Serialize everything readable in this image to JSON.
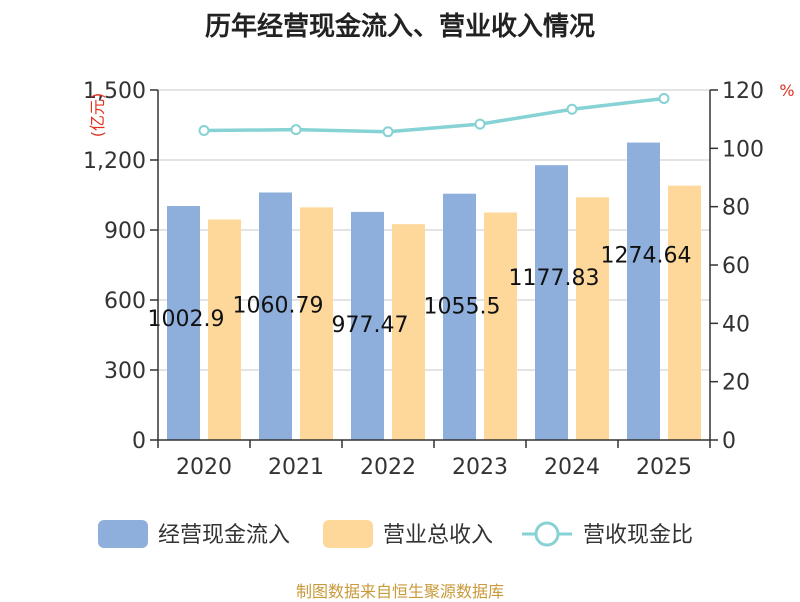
{
  "chart_data": {
    "type": "bar",
    "title": "历年经营现金流入、营业收入情况",
    "categories": [
      "2020",
      "2021",
      "2022",
      "2023",
      "2024",
      "2025"
    ],
    "series": [
      {
        "name": "经营现金流入",
        "type": "bar",
        "axis": "left",
        "color": "#8eaedb",
        "values": [
          1002.9,
          1060.79,
          977.47,
          1055.5,
          1177.83,
          1274.64
        ]
      },
      {
        "name": "营业总收入",
        "type": "bar",
        "axis": "left",
        "color": "#fdd89a",
        "values": [
          945,
          997,
          925,
          975,
          1040,
          1090
        ]
      },
      {
        "name": "营收现金比",
        "type": "line",
        "axis": "right",
        "color": "#86d2d4",
        "values": [
          106.1,
          106.4,
          105.7,
          108.3,
          113.4,
          117.1
        ]
      }
    ],
    "data_labels": [
      "1002.9",
      "1060.79",
      "977.47",
      "1055.5",
      "1177.83",
      "1274.64"
    ],
    "y_left": {
      "label": "亿元",
      "ylim": [
        0,
        1500
      ],
      "ticks": [
        0,
        300,
        600,
        900,
        1200,
        1500
      ],
      "tick_labels": [
        "0",
        "300",
        "600",
        "900",
        "1,200",
        "1,500"
      ]
    },
    "y_right": {
      "label": "%",
      "ylim": [
        0,
        120
      ],
      "ticks": [
        0,
        20,
        40,
        60,
        80,
        100,
        120
      ],
      "tick_labels": [
        "0",
        "20",
        "40",
        "60",
        "80",
        "100",
        "120"
      ]
    },
    "grid": true,
    "legend": "bottom"
  },
  "footer": "制图数据来自恒生聚源数据库"
}
